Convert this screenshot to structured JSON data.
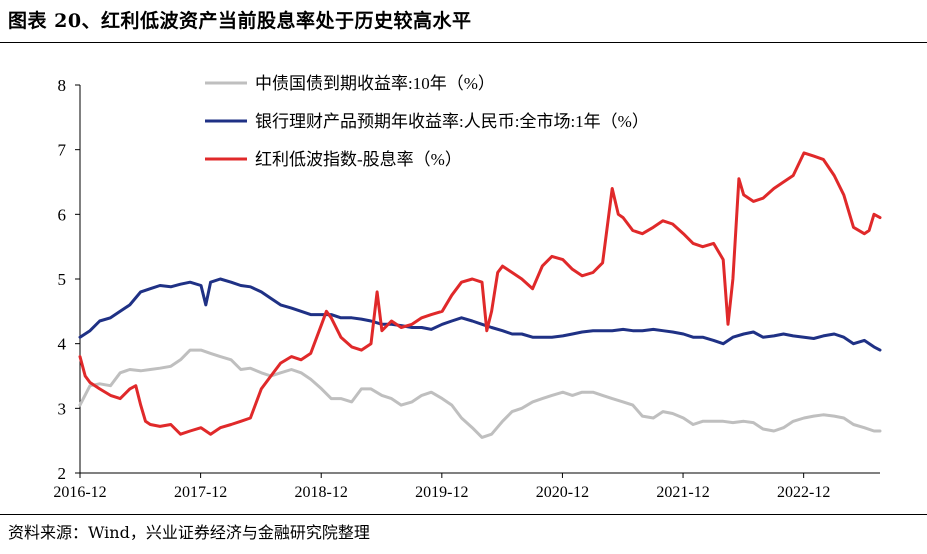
{
  "title": "图表 20、红利低波资产当前股息率处于历史较高水平",
  "source": "资料来源：Wind，兴业证券经济与金融研究院整理",
  "chart_data": {
    "type": "line",
    "y_ticks": [
      "8",
      "7",
      "6",
      "5",
      "4",
      "3",
      "2"
    ],
    "ylim": [
      2,
      8
    ],
    "x_ticks": [
      "2016-12",
      "2017-12",
      "2018-12",
      "2019-12",
      "2020-12",
      "2021-12",
      "2022-12"
    ],
    "x_tick_values": [
      2016.917,
      2017.917,
      2018.917,
      2019.917,
      2020.917,
      2021.917,
      2022.917
    ],
    "xlim": [
      2016.917,
      2023.55
    ],
    "grid": false,
    "legend_position": "top-center",
    "series": [
      {
        "name": "中债国债到期收益率:10年（%）",
        "color": "#bfbfbf",
        "points": [
          [
            2016.917,
            3.05
          ],
          [
            2017.0,
            3.35
          ],
          [
            2017.08,
            3.38
          ],
          [
            2017.17,
            3.35
          ],
          [
            2017.25,
            3.55
          ],
          [
            2017.33,
            3.6
          ],
          [
            2017.42,
            3.58
          ],
          [
            2017.5,
            3.6
          ],
          [
            2017.58,
            3.62
          ],
          [
            2017.67,
            3.65
          ],
          [
            2017.75,
            3.75
          ],
          [
            2017.83,
            3.9
          ],
          [
            2017.92,
            3.9
          ],
          [
            2018.0,
            3.85
          ],
          [
            2018.08,
            3.8
          ],
          [
            2018.17,
            3.75
          ],
          [
            2018.25,
            3.6
          ],
          [
            2018.33,
            3.62
          ],
          [
            2018.42,
            3.55
          ],
          [
            2018.5,
            3.5
          ],
          [
            2018.58,
            3.55
          ],
          [
            2018.67,
            3.6
          ],
          [
            2018.75,
            3.55
          ],
          [
            2018.83,
            3.45
          ],
          [
            2018.92,
            3.3
          ],
          [
            2019.0,
            3.15
          ],
          [
            2019.08,
            3.15
          ],
          [
            2019.17,
            3.1
          ],
          [
            2019.25,
            3.3
          ],
          [
            2019.33,
            3.3
          ],
          [
            2019.42,
            3.2
          ],
          [
            2019.5,
            3.15
          ],
          [
            2019.58,
            3.05
          ],
          [
            2019.67,
            3.1
          ],
          [
            2019.75,
            3.2
          ],
          [
            2019.83,
            3.25
          ],
          [
            2019.92,
            3.15
          ],
          [
            2020.0,
            3.05
          ],
          [
            2020.08,
            2.85
          ],
          [
            2020.17,
            2.7
          ],
          [
            2020.25,
            2.55
          ],
          [
            2020.33,
            2.6
          ],
          [
            2020.42,
            2.8
          ],
          [
            2020.5,
            2.95
          ],
          [
            2020.58,
            3.0
          ],
          [
            2020.67,
            3.1
          ],
          [
            2020.75,
            3.15
          ],
          [
            2020.83,
            3.2
          ],
          [
            2020.92,
            3.25
          ],
          [
            2021.0,
            3.2
          ],
          [
            2021.08,
            3.25
          ],
          [
            2021.17,
            3.25
          ],
          [
            2021.25,
            3.2
          ],
          [
            2021.33,
            3.15
          ],
          [
            2021.42,
            3.1
          ],
          [
            2021.5,
            3.05
          ],
          [
            2021.58,
            2.88
          ],
          [
            2021.67,
            2.85
          ],
          [
            2021.75,
            2.95
          ],
          [
            2021.83,
            2.92
          ],
          [
            2021.92,
            2.85
          ],
          [
            2022.0,
            2.75
          ],
          [
            2022.08,
            2.8
          ],
          [
            2022.17,
            2.8
          ],
          [
            2022.25,
            2.8
          ],
          [
            2022.33,
            2.78
          ],
          [
            2022.42,
            2.8
          ],
          [
            2022.5,
            2.78
          ],
          [
            2022.58,
            2.68
          ],
          [
            2022.67,
            2.65
          ],
          [
            2022.75,
            2.7
          ],
          [
            2022.83,
            2.8
          ],
          [
            2022.92,
            2.85
          ],
          [
            2023.0,
            2.88
          ],
          [
            2023.08,
            2.9
          ],
          [
            2023.17,
            2.88
          ],
          [
            2023.25,
            2.85
          ],
          [
            2023.33,
            2.75
          ],
          [
            2023.42,
            2.7
          ],
          [
            2023.5,
            2.65
          ],
          [
            2023.55,
            2.65
          ]
        ]
      },
      {
        "name": "银行理财产品预期年收益率:人民币:全市场:1年（%）",
        "color": "#1f3185",
        "points": [
          [
            2016.917,
            4.1
          ],
          [
            2017.0,
            4.2
          ],
          [
            2017.08,
            4.35
          ],
          [
            2017.17,
            4.4
          ],
          [
            2017.25,
            4.5
          ],
          [
            2017.33,
            4.6
          ],
          [
            2017.42,
            4.8
          ],
          [
            2017.5,
            4.85
          ],
          [
            2017.58,
            4.9
          ],
          [
            2017.67,
            4.88
          ],
          [
            2017.75,
            4.92
          ],
          [
            2017.83,
            4.95
          ],
          [
            2017.92,
            4.9
          ],
          [
            2017.96,
            4.6
          ],
          [
            2018.0,
            4.95
          ],
          [
            2018.08,
            5.0
          ],
          [
            2018.17,
            4.95
          ],
          [
            2018.25,
            4.9
          ],
          [
            2018.33,
            4.88
          ],
          [
            2018.42,
            4.8
          ],
          [
            2018.5,
            4.7
          ],
          [
            2018.58,
            4.6
          ],
          [
            2018.67,
            4.55
          ],
          [
            2018.75,
            4.5
          ],
          [
            2018.83,
            4.45
          ],
          [
            2018.92,
            4.45
          ],
          [
            2019.0,
            4.45
          ],
          [
            2019.08,
            4.4
          ],
          [
            2019.17,
            4.4
          ],
          [
            2019.25,
            4.38
          ],
          [
            2019.33,
            4.35
          ],
          [
            2019.42,
            4.3
          ],
          [
            2019.5,
            4.3
          ],
          [
            2019.58,
            4.28
          ],
          [
            2019.67,
            4.25
          ],
          [
            2019.75,
            4.25
          ],
          [
            2019.83,
            4.22
          ],
          [
            2019.92,
            4.3
          ],
          [
            2020.0,
            4.35
          ],
          [
            2020.08,
            4.4
          ],
          [
            2020.17,
            4.35
          ],
          [
            2020.25,
            4.3
          ],
          [
            2020.33,
            4.25
          ],
          [
            2020.42,
            4.2
          ],
          [
            2020.5,
            4.15
          ],
          [
            2020.58,
            4.15
          ],
          [
            2020.67,
            4.1
          ],
          [
            2020.75,
            4.1
          ],
          [
            2020.83,
            4.1
          ],
          [
            2020.92,
            4.12
          ],
          [
            2021.0,
            4.15
          ],
          [
            2021.08,
            4.18
          ],
          [
            2021.17,
            4.2
          ],
          [
            2021.25,
            4.2
          ],
          [
            2021.33,
            4.2
          ],
          [
            2021.42,
            4.22
          ],
          [
            2021.5,
            4.2
          ],
          [
            2021.58,
            4.2
          ],
          [
            2021.67,
            4.22
          ],
          [
            2021.75,
            4.2
          ],
          [
            2021.83,
            4.18
          ],
          [
            2021.92,
            4.15
          ],
          [
            2022.0,
            4.1
          ],
          [
            2022.08,
            4.1
          ],
          [
            2022.17,
            4.05
          ],
          [
            2022.25,
            4.0
          ],
          [
            2022.33,
            4.1
          ],
          [
            2022.42,
            4.15
          ],
          [
            2022.5,
            4.18
          ],
          [
            2022.58,
            4.1
          ],
          [
            2022.67,
            4.12
          ],
          [
            2022.75,
            4.15
          ],
          [
            2022.83,
            4.12
          ],
          [
            2022.92,
            4.1
          ],
          [
            2023.0,
            4.08
          ],
          [
            2023.08,
            4.12
          ],
          [
            2023.17,
            4.15
          ],
          [
            2023.25,
            4.1
          ],
          [
            2023.33,
            4.0
          ],
          [
            2023.42,
            4.05
          ],
          [
            2023.5,
            3.95
          ],
          [
            2023.55,
            3.9
          ]
        ]
      },
      {
        "name": "红利低波指数-股息率（%）",
        "color": "#e0292a",
        "points": [
          [
            2016.917,
            3.8
          ],
          [
            2016.96,
            3.5
          ],
          [
            2017.0,
            3.4
          ],
          [
            2017.08,
            3.3
          ],
          [
            2017.17,
            3.2
          ],
          [
            2017.25,
            3.15
          ],
          [
            2017.33,
            3.3
          ],
          [
            2017.38,
            3.35
          ],
          [
            2017.42,
            3.05
          ],
          [
            2017.46,
            2.8
          ],
          [
            2017.5,
            2.75
          ],
          [
            2017.58,
            2.72
          ],
          [
            2017.67,
            2.75
          ],
          [
            2017.75,
            2.6
          ],
          [
            2017.83,
            2.65
          ],
          [
            2017.92,
            2.7
          ],
          [
            2018.0,
            2.6
          ],
          [
            2018.08,
            2.7
          ],
          [
            2018.17,
            2.75
          ],
          [
            2018.25,
            2.8
          ],
          [
            2018.33,
            2.85
          ],
          [
            2018.42,
            3.3
          ],
          [
            2018.5,
            3.5
          ],
          [
            2018.58,
            3.7
          ],
          [
            2018.67,
            3.8
          ],
          [
            2018.75,
            3.75
          ],
          [
            2018.83,
            3.85
          ],
          [
            2018.92,
            4.3
          ],
          [
            2018.96,
            4.5
          ],
          [
            2019.0,
            4.4
          ],
          [
            2019.08,
            4.1
          ],
          [
            2019.17,
            3.95
          ],
          [
            2019.25,
            3.9
          ],
          [
            2019.33,
            4.0
          ],
          [
            2019.38,
            4.8
          ],
          [
            2019.42,
            4.2
          ],
          [
            2019.5,
            4.35
          ],
          [
            2019.58,
            4.25
          ],
          [
            2019.67,
            4.3
          ],
          [
            2019.75,
            4.4
          ],
          [
            2019.83,
            4.45
          ],
          [
            2019.92,
            4.5
          ],
          [
            2020.0,
            4.75
          ],
          [
            2020.08,
            4.95
          ],
          [
            2020.17,
            5.0
          ],
          [
            2020.25,
            4.95
          ],
          [
            2020.29,
            4.2
          ],
          [
            2020.33,
            4.5
          ],
          [
            2020.38,
            5.1
          ],
          [
            2020.42,
            5.2
          ],
          [
            2020.5,
            5.1
          ],
          [
            2020.58,
            5.0
          ],
          [
            2020.67,
            4.85
          ],
          [
            2020.75,
            5.2
          ],
          [
            2020.83,
            5.35
          ],
          [
            2020.92,
            5.3
          ],
          [
            2021.0,
            5.15
          ],
          [
            2021.08,
            5.05
          ],
          [
            2021.17,
            5.1
          ],
          [
            2021.25,
            5.25
          ],
          [
            2021.33,
            6.4
          ],
          [
            2021.38,
            6.0
          ],
          [
            2021.42,
            5.95
          ],
          [
            2021.5,
            5.75
          ],
          [
            2021.58,
            5.7
          ],
          [
            2021.67,
            5.8
          ],
          [
            2021.75,
            5.9
          ],
          [
            2021.83,
            5.85
          ],
          [
            2021.92,
            5.7
          ],
          [
            2022.0,
            5.55
          ],
          [
            2022.08,
            5.5
          ],
          [
            2022.17,
            5.55
          ],
          [
            2022.25,
            5.3
          ],
          [
            2022.29,
            4.3
          ],
          [
            2022.33,
            5.0
          ],
          [
            2022.38,
            6.55
          ],
          [
            2022.42,
            6.3
          ],
          [
            2022.5,
            6.2
          ],
          [
            2022.58,
            6.25
          ],
          [
            2022.67,
            6.4
          ],
          [
            2022.75,
            6.5
          ],
          [
            2022.83,
            6.6
          ],
          [
            2022.92,
            6.95
          ],
          [
            2023.0,
            6.9
          ],
          [
            2023.08,
            6.85
          ],
          [
            2023.17,
            6.6
          ],
          [
            2023.25,
            6.3
          ],
          [
            2023.33,
            5.8
          ],
          [
            2023.42,
            5.7
          ],
          [
            2023.46,
            5.75
          ],
          [
            2023.5,
            6.0
          ],
          [
            2023.55,
            5.95
          ]
        ]
      }
    ]
  }
}
